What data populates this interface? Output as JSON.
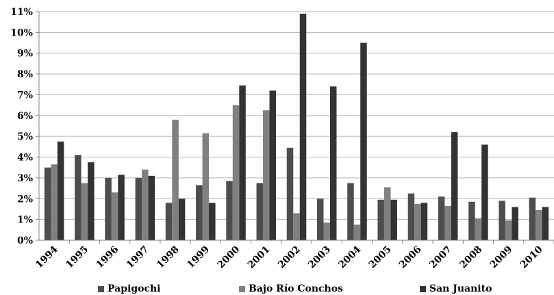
{
  "chart_data": {
    "type": "bar",
    "categories": [
      "1994",
      "1995",
      "1996",
      "1997",
      "1998",
      "1999",
      "2000",
      "2001",
      "2002",
      "2003",
      "2004",
      "2005",
      "2006",
      "2007",
      "2008",
      "2009",
      "2010"
    ],
    "series": [
      {
        "name": "Papigochi",
        "color": "#4d4d4d",
        "values": [
          3.5,
          4.1,
          3.0,
          3.0,
          1.8,
          2.65,
          2.85,
          2.75,
          4.45,
          2.0,
          2.75,
          1.95,
          2.25,
          2.1,
          1.85,
          1.9,
          2.05
        ]
      },
      {
        "name": "Bajo Río Conchos",
        "color": "#808080",
        "values": [
          3.65,
          2.75,
          2.3,
          3.4,
          5.8,
          5.15,
          6.5,
          6.25,
          1.3,
          0.85,
          0.75,
          2.55,
          1.75,
          1.65,
          1.05,
          0.95,
          1.45
        ]
      },
      {
        "name": "San Juanito",
        "color": "#333333",
        "values": [
          4.75,
          3.75,
          3.15,
          3.1,
          2.0,
          1.8,
          7.45,
          7.2,
          10.9,
          7.4,
          9.5,
          1.95,
          1.8,
          5.2,
          4.6,
          1.6,
          1.6
        ]
      }
    ],
    "ylim": [
      0,
      11
    ],
    "yticks": [
      "0%",
      "1%",
      "2%",
      "3%",
      "4%",
      "5%",
      "6%",
      "7%",
      "8%",
      "9%",
      "10%",
      "11%"
    ],
    "grid": "horizontal",
    "legend_position": "bottom",
    "xlabel": "",
    "ylabel": ""
  }
}
